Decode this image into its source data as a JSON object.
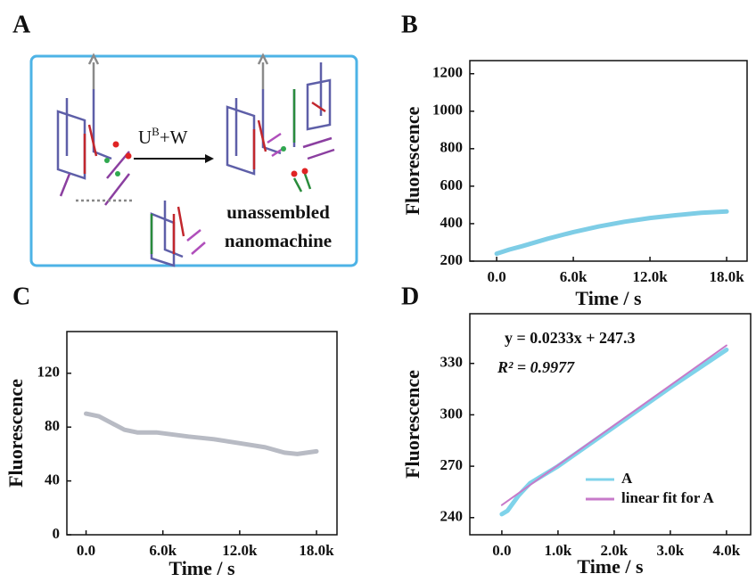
{
  "panels": [
    "A",
    "B",
    "C",
    "D"
  ],
  "diagram": {
    "reaction_base": "U",
    "reaction_sup": "B",
    "reaction_rest": "+W",
    "caption": [
      "unassembled",
      "nanomachine"
    ]
  },
  "chart_data": [
    {
      "type": "line",
      "x_label": "Time / s",
      "y_label": "Fluorescence",
      "xlim": [
        -2100,
        19600
      ],
      "ylim": [
        200,
        1270
      ],
      "xticks": [
        {
          "value": 0,
          "label": "0.0"
        },
        {
          "value": 6000,
          "label": "6.0k"
        },
        {
          "value": 12000,
          "label": "12.0k"
        },
        {
          "value": 18000,
          "label": "18.0k"
        }
      ],
      "yticks": [
        200,
        400,
        600,
        800,
        1000,
        1200
      ],
      "series": [
        {
          "color": "#7ecde6",
          "x": [
            0,
            1000,
            2000,
            4000,
            6000,
            8000,
            10000,
            12000,
            14000,
            16000,
            18000
          ],
          "values": [
            240,
            262,
            280,
            320,
            355,
            385,
            410,
            430,
            445,
            458,
            465
          ]
        }
      ]
    },
    {
      "type": "line",
      "x_label": "Time / s",
      "y_label": "Fluorescence",
      "xlim": [
        -1500,
        19600
      ],
      "ylim": [
        0,
        151
      ],
      "xticks": [
        {
          "value": 0,
          "label": "0.0"
        },
        {
          "value": 6000,
          "label": "6.0k"
        },
        {
          "value": 12000,
          "label": "12.0k"
        },
        {
          "value": 18000,
          "label": "18.0k"
        }
      ],
      "yticks": [
        0,
        40,
        80,
        120
      ],
      "series": [
        {
          "color": "#b8bbc4",
          "x": [
            0,
            1000,
            2000,
            3000,
            4000,
            5500,
            8000,
            10000,
            12000,
            14000,
            15500,
            16500,
            18000
          ],
          "values": [
            90,
            88,
            83,
            78,
            76,
            76,
            73,
            71,
            68,
            65,
            61,
            60,
            62
          ]
        }
      ]
    },
    {
      "type": "line",
      "x_label": "Time / s",
      "y_label": "Fluorescence",
      "xlim": [
        -570,
        4430
      ],
      "ylim": [
        230,
        359
      ],
      "xticks": [
        {
          "value": 0,
          "label": "0.0"
        },
        {
          "value": 1000,
          "label": "1.0k"
        },
        {
          "value": 2000,
          "label": "2.0k"
        },
        {
          "value": 3000,
          "label": "3.0k"
        },
        {
          "value": 4000,
          "label": "4.0k"
        }
      ],
      "yticks": [
        240,
        270,
        300,
        330
      ],
      "annotations": [
        "y = 0.0233x + 247.3",
        "R² = 0.9977"
      ],
      "legend": "lower right",
      "series": [
        {
          "name": "A",
          "color": "#7fd3ea",
          "x": [
            0,
            100,
            300,
            500,
            1000,
            2000,
            3000,
            4000
          ],
          "values": [
            242,
            244,
            253,
            260,
            270,
            293,
            316,
            338
          ]
        },
        {
          "name": "linear fit for A",
          "color": "#c77ac9",
          "x": [
            0,
            4000
          ],
          "values": [
            247.3,
            340.5
          ]
        }
      ]
    }
  ]
}
